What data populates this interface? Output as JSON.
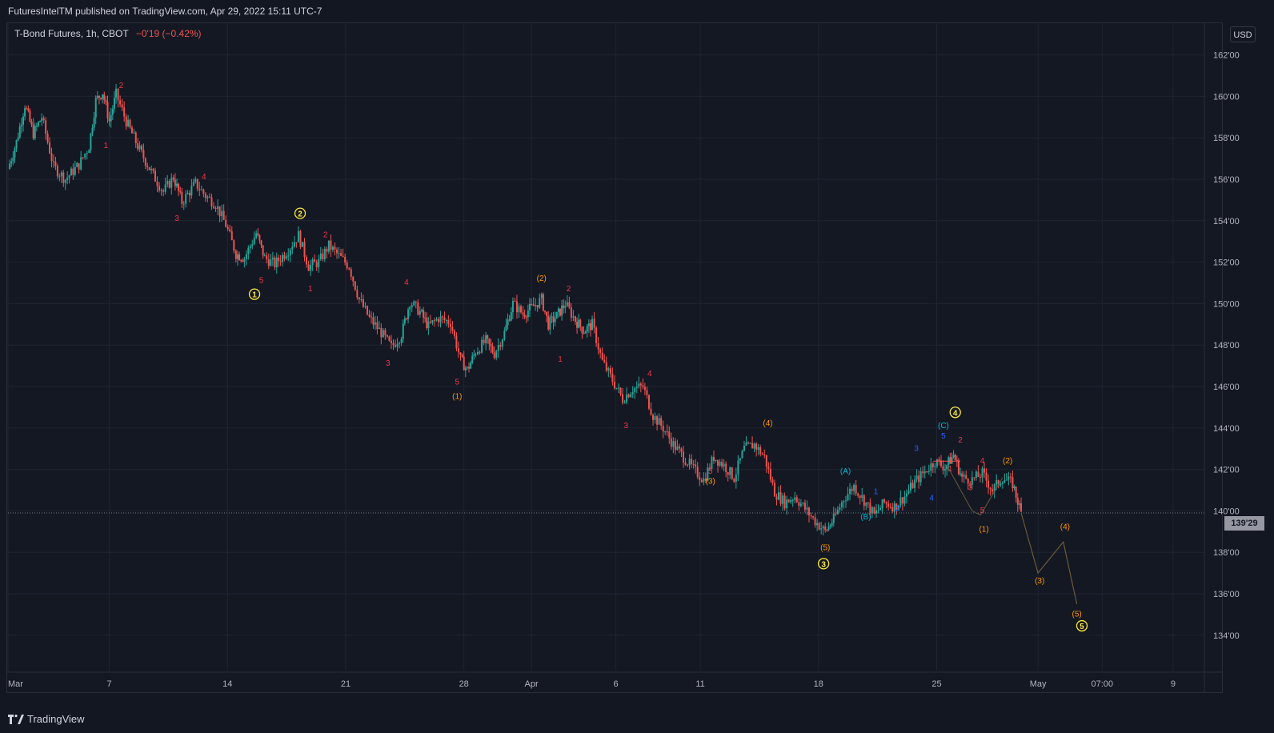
{
  "header": {
    "published": "FuturesIntelTM published on TradingView.com, Apr 29, 2022 15:11 UTC-7"
  },
  "legend": {
    "symbol": "T-Bond Futures, 1h, CBOT",
    "change": "−0'19 (−0.42%)"
  },
  "currency": "USD",
  "price_tag": "139'29",
  "footer": {
    "logo_text": "TradingView"
  },
  "colors": {
    "background": "#131722",
    "grid": "#1f2433",
    "up_candle": "#26a69a",
    "down_candle": "#ef5350",
    "wave_red": "#f23645",
    "wave_orange": "#ff9800",
    "wave_yellow": "#ffeb3b",
    "wave_blue": "#2962ff",
    "wave_cyan": "#00bcd4",
    "projection": "#6b5a3a"
  },
  "chart_data": {
    "type": "candlestick",
    "ylim": [
      132.5,
      163.8
    ],
    "y_ticks": [
      "162'00",
      "160'00",
      "158'00",
      "156'00",
      "154'00",
      "152'00",
      "150'00",
      "148'00",
      "146'00",
      "144'00",
      "142'00",
      "140'00",
      "138'00",
      "136'00",
      "134'00"
    ],
    "y_tick_values": [
      162,
      160,
      158,
      156,
      154,
      152,
      150,
      148,
      146,
      144,
      142,
      140,
      138,
      136,
      134
    ],
    "x_ticks": [
      {
        "label": "Mar",
        "day": 0
      },
      {
        "label": "7",
        "day": 6
      },
      {
        "label": "14",
        "day": 13
      },
      {
        "label": "21",
        "day": 20
      },
      {
        "label": "28",
        "day": 27
      },
      {
        "label": "Apr",
        "day": 31
      },
      {
        "label": "6",
        "day": 36
      },
      {
        "label": "11",
        "day": 41
      },
      {
        "label": "18",
        "day": 48
      },
      {
        "label": "25",
        "day": 55
      },
      {
        "label": "May",
        "day": 61
      },
      {
        "label": "07:00",
        "day": 64.8
      },
      {
        "label": "9",
        "day": 69
      }
    ],
    "last_price": 139.9,
    "price_path": [
      {
        "day": 0.0,
        "price": 156.5
      },
      {
        "day": 0.5,
        "price": 157.8
      },
      {
        "day": 1.0,
        "price": 159.6
      },
      {
        "day": 1.5,
        "price": 158.2
      },
      {
        "day": 2.0,
        "price": 159.0
      },
      {
        "day": 2.7,
        "price": 156.6
      },
      {
        "day": 3.4,
        "price": 156.0
      },
      {
        "day": 4.2,
        "price": 156.7
      },
      {
        "day": 4.8,
        "price": 157.6
      },
      {
        "day": 5.2,
        "price": 159.8
      },
      {
        "day": 5.6,
        "price": 160.2
      },
      {
        "day": 6.0,
        "price": 158.8
      },
      {
        "day": 6.4,
        "price": 160.1
      },
      {
        "day": 7.0,
        "price": 158.8
      },
      {
        "day": 7.8,
        "price": 157.4
      },
      {
        "day": 8.6,
        "price": 156.2
      },
      {
        "day": 9.2,
        "price": 155.4
      },
      {
        "day": 9.8,
        "price": 156.1
      },
      {
        "day": 10.3,
        "price": 154.9
      },
      {
        "day": 11.1,
        "price": 155.8
      },
      {
        "day": 11.7,
        "price": 155.2
      },
      {
        "day": 12.3,
        "price": 154.8
      },
      {
        "day": 12.9,
        "price": 153.8
      },
      {
        "day": 13.5,
        "price": 152.4
      },
      {
        "day": 14.0,
        "price": 152.2
      },
      {
        "day": 14.7,
        "price": 153.4
      },
      {
        "day": 15.2,
        "price": 152.2
      },
      {
        "day": 15.8,
        "price": 151.9
      },
      {
        "day": 16.6,
        "price": 152.6
      },
      {
        "day": 17.2,
        "price": 153.3
      },
      {
        "day": 17.8,
        "price": 151.8
      },
      {
        "day": 18.4,
        "price": 152.0
      },
      {
        "day": 19.0,
        "price": 152.8
      },
      {
        "day": 19.6,
        "price": 152.3
      },
      {
        "day": 20.2,
        "price": 151.8
      },
      {
        "day": 20.8,
        "price": 150.2
      },
      {
        "day": 21.4,
        "price": 149.3
      },
      {
        "day": 22.1,
        "price": 148.6
      },
      {
        "day": 22.7,
        "price": 147.9
      },
      {
        "day": 23.3,
        "price": 148.5
      },
      {
        "day": 23.8,
        "price": 150.1
      },
      {
        "day": 24.4,
        "price": 149.6
      },
      {
        "day": 24.9,
        "price": 148.9
      },
      {
        "day": 25.5,
        "price": 149.3
      },
      {
        "day": 26.2,
        "price": 149.1
      },
      {
        "day": 26.8,
        "price": 147.3
      },
      {
        "day": 27.2,
        "price": 146.8
      },
      {
        "day": 27.7,
        "price": 147.7
      },
      {
        "day": 28.3,
        "price": 148.2
      },
      {
        "day": 28.8,
        "price": 147.6
      },
      {
        "day": 29.4,
        "price": 148.6
      },
      {
        "day": 29.9,
        "price": 150.0
      },
      {
        "day": 30.5,
        "price": 149.5
      },
      {
        "day": 31.0,
        "price": 149.8
      },
      {
        "day": 31.6,
        "price": 150.2
      },
      {
        "day": 32.0,
        "price": 149.0
      },
      {
        "day": 32.5,
        "price": 149.4
      },
      {
        "day": 33.0,
        "price": 150.0
      },
      {
        "day": 33.6,
        "price": 149.2
      },
      {
        "day": 34.1,
        "price": 148.7
      },
      {
        "day": 34.6,
        "price": 149.0
      },
      {
        "day": 35.2,
        "price": 147.2
      },
      {
        "day": 35.8,
        "price": 146.3
      },
      {
        "day": 36.4,
        "price": 145.4
      },
      {
        "day": 37.0,
        "price": 145.9
      },
      {
        "day": 37.6,
        "price": 146.0
      },
      {
        "day": 38.2,
        "price": 144.6
      },
      {
        "day": 38.8,
        "price": 144.0
      },
      {
        "day": 39.4,
        "price": 143.2
      },
      {
        "day": 40.0,
        "price": 142.6
      },
      {
        "day": 40.6,
        "price": 142.0
      },
      {
        "day": 41.2,
        "price": 141.5
      },
      {
        "day": 41.8,
        "price": 142.6
      },
      {
        "day": 42.4,
        "price": 142.2
      },
      {
        "day": 43.0,
        "price": 141.6
      },
      {
        "day": 43.6,
        "price": 143.0
      },
      {
        "day": 44.2,
        "price": 143.2
      },
      {
        "day": 44.8,
        "price": 142.6
      },
      {
        "day": 45.4,
        "price": 140.9
      },
      {
        "day": 46.0,
        "price": 140.4
      },
      {
        "day": 46.6,
        "price": 140.7
      },
      {
        "day": 47.2,
        "price": 140.1
      },
      {
        "day": 47.8,
        "price": 139.5
      },
      {
        "day": 48.4,
        "price": 139.0
      },
      {
        "day": 48.9,
        "price": 139.6
      },
      {
        "day": 49.5,
        "price": 140.6
      },
      {
        "day": 50.1,
        "price": 141.2
      },
      {
        "day": 50.7,
        "price": 140.5
      },
      {
        "day": 51.3,
        "price": 139.8
      },
      {
        "day": 51.9,
        "price": 140.4
      },
      {
        "day": 52.5,
        "price": 140.2
      },
      {
        "day": 53.1,
        "price": 140.7
      },
      {
        "day": 53.7,
        "price": 141.4
      },
      {
        "day": 54.3,
        "price": 141.9
      },
      {
        "day": 54.9,
        "price": 142.4
      },
      {
        "day": 55.5,
        "price": 142.1
      },
      {
        "day": 56.0,
        "price": 142.7
      },
      {
        "day": 56.5,
        "price": 141.6
      },
      {
        "day": 57.1,
        "price": 141.5
      },
      {
        "day": 57.7,
        "price": 141.8
      },
      {
        "day": 58.3,
        "price": 141.0
      },
      {
        "day": 58.9,
        "price": 141.6
      },
      {
        "day": 59.5,
        "price": 141.3
      },
      {
        "day": 60.0,
        "price": 139.9
      }
    ],
    "projection_path": [
      {
        "day": 60.0,
        "price": 139.9
      },
      {
        "day": 61.0,
        "price": 137.0
      },
      {
        "day": 62.5,
        "price": 138.5
      },
      {
        "day": 63.3,
        "price": 135.5
      }
    ],
    "wave_labels": [
      {
        "text": "2",
        "day": 6.7,
        "price": 160.4,
        "color": "red"
      },
      {
        "text": "1",
        "day": 5.8,
        "price": 157.5,
        "color": "red"
      },
      {
        "text": "4",
        "day": 11.6,
        "price": 156.0,
        "color": "red"
      },
      {
        "text": "3",
        "day": 10.0,
        "price": 154.0,
        "color": "red"
      },
      {
        "text": "2",
        "day": 17.3,
        "price": 154.2,
        "color": "yellow-circle"
      },
      {
        "text": "2",
        "day": 18.8,
        "price": 153.2,
        "color": "red"
      },
      {
        "text": "5",
        "day": 15.0,
        "price": 151.0,
        "color": "red"
      },
      {
        "text": "1",
        "day": 17.9,
        "price": 150.6,
        "color": "red"
      },
      {
        "text": "1",
        "day": 14.6,
        "price": 150.3,
        "color": "yellow-circle"
      },
      {
        "text": "4",
        "day": 23.6,
        "price": 150.9,
        "color": "red"
      },
      {
        "text": "3",
        "day": 22.5,
        "price": 147.0,
        "color": "red"
      },
      {
        "text": "5",
        "day": 26.6,
        "price": 146.1,
        "color": "red"
      },
      {
        "text": "(1)",
        "day": 26.6,
        "price": 145.4,
        "color": "orange"
      },
      {
        "text": "(2)",
        "day": 31.6,
        "price": 151.1,
        "color": "orange"
      },
      {
        "text": "2",
        "day": 33.2,
        "price": 150.6,
        "color": "red"
      },
      {
        "text": "1",
        "day": 32.7,
        "price": 147.2,
        "color": "red"
      },
      {
        "text": "4",
        "day": 38.0,
        "price": 146.5,
        "color": "red"
      },
      {
        "text": "3",
        "day": 36.6,
        "price": 144.0,
        "color": "red"
      },
      {
        "text": "(4)",
        "day": 45.0,
        "price": 144.1,
        "color": "orange"
      },
      {
        "text": "5",
        "day": 41.6,
        "price": 141.8,
        "color": "red"
      },
      {
        "text": "(3)",
        "day": 41.6,
        "price": 141.3,
        "color": "orange"
      },
      {
        "text": "(A)",
        "day": 49.6,
        "price": 141.8,
        "color": "cyan"
      },
      {
        "text": "1",
        "day": 51.4,
        "price": 140.8,
        "color": "blue"
      },
      {
        "text": "(B)",
        "day": 50.8,
        "price": 139.6,
        "color": "cyan"
      },
      {
        "text": "2",
        "day": 52.7,
        "price": 140.0,
        "color": "blue"
      },
      {
        "text": "(5)",
        "day": 48.4,
        "price": 138.1,
        "color": "orange"
      },
      {
        "text": "3",
        "day": 48.3,
        "price": 137.3,
        "color": "yellow-circle"
      },
      {
        "text": "3",
        "day": 53.8,
        "price": 142.9,
        "color": "blue"
      },
      {
        "text": "4",
        "day": 54.7,
        "price": 140.5,
        "color": "blue"
      },
      {
        "text": "4",
        "day": 56.1,
        "price": 144.6,
        "color": "yellow-circle"
      },
      {
        "text": "(C)",
        "day": 55.4,
        "price": 144.0,
        "color": "cyan"
      },
      {
        "text": "5",
        "day": 55.4,
        "price": 143.5,
        "color": "blue"
      },
      {
        "text": "2",
        "day": 56.4,
        "price": 143.3,
        "color": "red"
      },
      {
        "text": "1",
        "day": 55.8,
        "price": 141.9,
        "color": "red"
      },
      {
        "text": "4",
        "day": 57.7,
        "price": 142.3,
        "color": "red"
      },
      {
        "text": "3",
        "day": 57.0,
        "price": 141.0,
        "color": "red"
      },
      {
        "text": "(2)",
        "day": 59.2,
        "price": 142.3,
        "color": "orange"
      },
      {
        "text": "5",
        "day": 57.7,
        "price": 139.9,
        "color": "red"
      },
      {
        "text": "(1)",
        "day": 57.8,
        "price": 139.0,
        "color": "orange"
      },
      {
        "text": "(4)",
        "day": 62.6,
        "price": 139.1,
        "color": "orange"
      },
      {
        "text": "(3)",
        "day": 61.1,
        "price": 136.5,
        "color": "orange"
      },
      {
        "text": "(5)",
        "day": 63.3,
        "price": 134.9,
        "color": "orange"
      },
      {
        "text": "5",
        "day": 63.6,
        "price": 134.3,
        "color": "yellow-circle"
      }
    ]
  }
}
